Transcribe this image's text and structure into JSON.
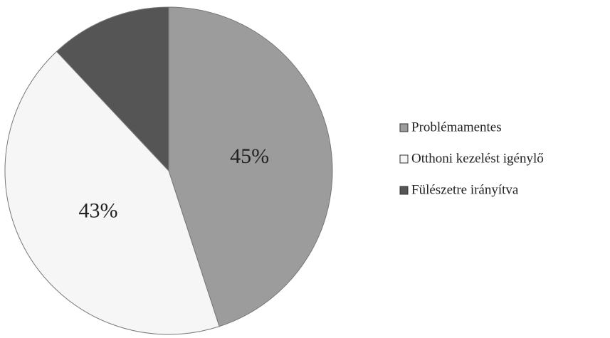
{
  "chart_data": {
    "type": "pie",
    "categories": [
      "Problémamentes",
      "Otthoni kezelést igénylő",
      "Fülészetre irányítva"
    ],
    "values": [
      45,
      43,
      12
    ],
    "value_labels": [
      "45%",
      "43%",
      null
    ],
    "colors": [
      "#9c9c9c",
      "#f6f6f6",
      "#555555"
    ],
    "legend": "right"
  }
}
